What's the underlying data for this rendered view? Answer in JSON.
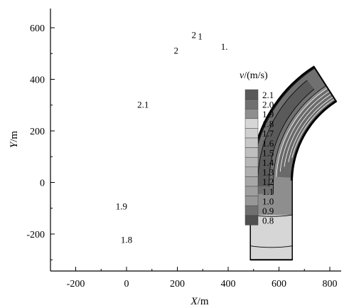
{
  "chart_data": {
    "type": "contour",
    "x_ticks": [
      -200,
      0,
      200,
      400,
      600,
      800
    ],
    "y_ticks": [
      600,
      400,
      200,
      0,
      -200
    ],
    "xlim": [
      -300,
      870
    ],
    "ylim": [
      -350,
      680
    ],
    "xlabel": {
      "var": "X",
      "unit": "/m"
    },
    "ylabel": {
      "var": "Y",
      "unit": "/m"
    },
    "channel": {
      "width_m": 165,
      "straight_y_range": [
        -300,
        0
      ],
      "bend_radius_inner_m": 435,
      "bend_center": [
        -75,
        0
      ]
    },
    "legend": {
      "title_var": "v",
      "title_unit": "/(m/s)",
      "placement": "right",
      "levels": [
        2.1,
        2.0,
        1.9,
        1.8,
        1.7,
        1.6,
        1.5,
        1.4,
        1.3,
        1.2,
        1.1,
        1.0,
        0.9,
        0.8
      ]
    },
    "contour_labels": [
      {
        "text": "1.8",
        "x": 0,
        "y": -235
      },
      {
        "text": "1.9",
        "x": -20,
        "y": -105
      },
      {
        "text": "2.1",
        "x": 65,
        "y": 290
      },
      {
        "text": "2",
        "x": 195,
        "y": 500
      },
      {
        "text": "2",
        "x": 265,
        "y": 560
      },
      {
        "text": "1",
        "x": 290,
        "y": 555
      },
      {
        "text": "1.",
        "x": 385,
        "y": 515
      }
    ]
  }
}
